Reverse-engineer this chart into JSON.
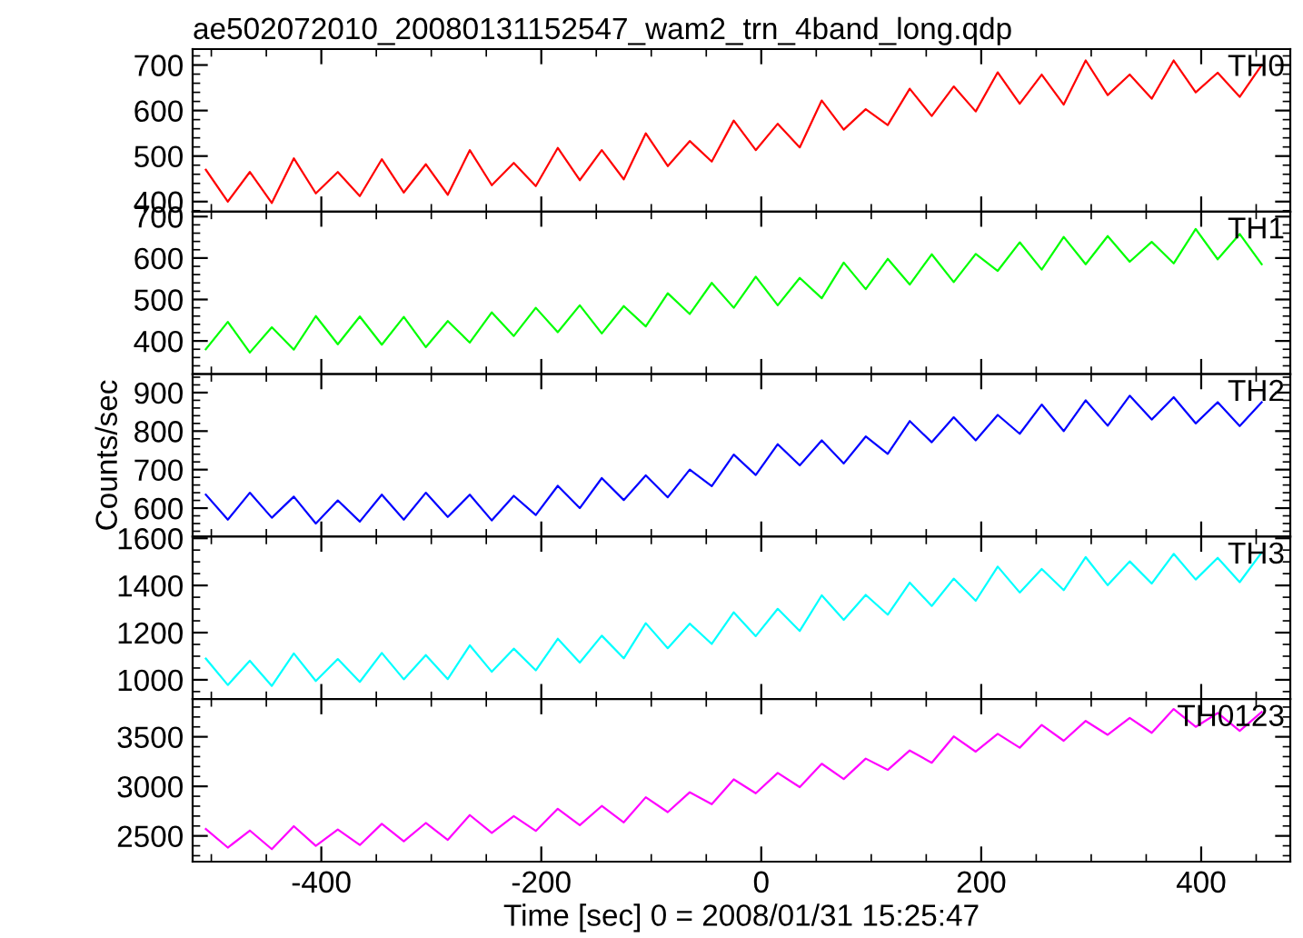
{
  "chart_data": [
    {
      "type": "line",
      "title": "ae502072010_20080131152547_wam2_trn_4band_long.qdp",
      "x": [
        -505,
        -485,
        -465,
        -445,
        -425,
        -405,
        -385,
        -365,
        -345,
        -325,
        -305,
        -285,
        -265,
        -245,
        -225,
        -205,
        -185,
        -165,
        -145,
        -125,
        -105,
        -85,
        -65,
        -45,
        -25,
        -5,
        15,
        35,
        55,
        75,
        95,
        115,
        135,
        155,
        175,
        195,
        215,
        235,
        255,
        275,
        295,
        315,
        335,
        355,
        375,
        395,
        415,
        435,
        455
      ],
      "series": [
        {
          "name": "TH0",
          "color": "#ff0000",
          "values": [
            470,
            400,
            465,
            397,
            495,
            418,
            465,
            412,
            493,
            420,
            482,
            415,
            513,
            436,
            485,
            434,
            518,
            447,
            513,
            449,
            550,
            478,
            533,
            488,
            578,
            513,
            571,
            519,
            622,
            558,
            603,
            568,
            648,
            588,
            653,
            598,
            684,
            615,
            679,
            613,
            710,
            634,
            679,
            626,
            710,
            640,
            683,
            630,
            700
          ]
        }
      ],
      "xlim": [
        -517,
        481
      ],
      "xticks": [
        -400,
        -200,
        0,
        200,
        400
      ],
      "ylim": [
        378,
        735
      ],
      "yticks": [
        400,
        500,
        600,
        700
      ],
      "tick_labels": "y",
      "grid": false,
      "legend": false,
      "marker": "none",
      "line_style": "solid"
    },
    {
      "type": "line",
      "x": [
        -505,
        -485,
        -465,
        -445,
        -425,
        -405,
        -385,
        -365,
        -345,
        -325,
        -305,
        -285,
        -265,
        -245,
        -225,
        -205,
        -185,
        -165,
        -145,
        -125,
        -105,
        -85,
        -65,
        -45,
        -25,
        -5,
        15,
        35,
        55,
        75,
        95,
        115,
        135,
        155,
        175,
        195,
        215,
        235,
        255,
        275,
        295,
        315,
        335,
        355,
        375,
        395,
        415,
        435,
        455
      ],
      "series": [
        {
          "name": "TH1",
          "color": "#00ff00",
          "values": [
            380,
            446,
            372,
            433,
            379,
            460,
            392,
            459,
            391,
            458,
            385,
            448,
            396,
            469,
            412,
            480,
            421,
            486,
            418,
            484,
            435,
            515,
            465,
            540,
            480,
            555,
            486,
            552,
            503,
            589,
            525,
            598,
            536,
            609,
            542,
            610,
            569,
            638,
            572,
            651,
            585,
            653,
            591,
            639,
            587,
            670,
            597,
            658,
            585
          ]
        }
      ],
      "xlim": [
        -517,
        481
      ],
      "xticks": [
        -400,
        -200,
        0,
        200,
        400
      ],
      "ylim": [
        320,
        712
      ],
      "yticks": [
        400,
        500,
        600,
        700
      ],
      "tick_labels": "y",
      "grid": false,
      "legend": false,
      "marker": "none",
      "line_style": "solid"
    },
    {
      "type": "line",
      "ylabel": "Counts/sec",
      "x": [
        -505,
        -485,
        -465,
        -445,
        -425,
        -405,
        -385,
        -365,
        -345,
        -325,
        -305,
        -285,
        -265,
        -245,
        -225,
        -205,
        -185,
        -165,
        -145,
        -125,
        -105,
        -85,
        -65,
        -45,
        -25,
        -5,
        15,
        35,
        55,
        75,
        95,
        115,
        135,
        155,
        175,
        195,
        215,
        235,
        255,
        275,
        295,
        315,
        335,
        355,
        375,
        395,
        415,
        435,
        455
      ],
      "series": [
        {
          "name": "TH2",
          "color": "#0000ff",
          "values": [
            635,
            570,
            640,
            575,
            630,
            560,
            620,
            565,
            635,
            570,
            640,
            577,
            635,
            568,
            632,
            582,
            658,
            600,
            678,
            621,
            685,
            628,
            700,
            657,
            739,
            686,
            766,
            711,
            776,
            716,
            786,
            741,
            826,
            771,
            836,
            776,
            842,
            793,
            869,
            800,
            880,
            814,
            892,
            830,
            888,
            820,
            875,
            813,
            875
          ]
        }
      ],
      "xlim": [
        -517,
        481
      ],
      "xticks": [
        -400,
        -200,
        0,
        200,
        400
      ],
      "ylim": [
        526,
        948
      ],
      "yticks": [
        600,
        700,
        800,
        900
      ],
      "tick_labels": "y",
      "grid": false,
      "legend": false,
      "marker": "none",
      "line_style": "solid"
    },
    {
      "type": "line",
      "x": [
        -505,
        -485,
        -465,
        -445,
        -425,
        -405,
        -385,
        -365,
        -345,
        -325,
        -305,
        -285,
        -265,
        -245,
        -225,
        -205,
        -185,
        -165,
        -145,
        -125,
        -105,
        -85,
        -65,
        -45,
        -25,
        -5,
        15,
        35,
        55,
        75,
        95,
        115,
        135,
        155,
        175,
        195,
        215,
        235,
        255,
        275,
        295,
        315,
        335,
        355,
        375,
        395,
        415,
        435,
        455
      ],
      "series": [
        {
          "name": "TH3",
          "color": "#00ffff",
          "values": [
            1090,
            978,
            1081,
            974,
            1112,
            995,
            1088,
            991,
            1114,
            1002,
            1105,
            1003,
            1146,
            1034,
            1132,
            1040,
            1174,
            1073,
            1187,
            1091,
            1240,
            1134,
            1238,
            1152,
            1286,
            1185,
            1301,
            1207,
            1358,
            1254,
            1360,
            1276,
            1412,
            1313,
            1429,
            1335,
            1480,
            1370,
            1470,
            1380,
            1520,
            1401,
            1502,
            1408,
            1534,
            1425,
            1517,
            1414,
            1540
          ]
        }
      ],
      "xlim": [
        -517,
        481
      ],
      "xticks": [
        -400,
        -200,
        0,
        200,
        400
      ],
      "ylim": [
        918,
        1607
      ],
      "yticks": [
        1000,
        1200,
        1400,
        1600
      ],
      "tick_labels": "y",
      "grid": false,
      "legend": false,
      "marker": "none",
      "line_style": "solid"
    },
    {
      "type": "line",
      "xlabel": "Time [sec] 0 = 2008/01/31 15:25:47",
      "x": [
        -505,
        -485,
        -465,
        -445,
        -425,
        -405,
        -385,
        -365,
        -345,
        -325,
        -305,
        -285,
        -265,
        -245,
        -225,
        -205,
        -185,
        -165,
        -145,
        -125,
        -105,
        -85,
        -65,
        -45,
        -25,
        -5,
        15,
        35,
        55,
        75,
        95,
        115,
        135,
        155,
        175,
        195,
        215,
        235,
        255,
        275,
        295,
        315,
        335,
        355,
        375,
        395,
        415,
        435,
        455
      ],
      "series": [
        {
          "name": "TH0123",
          "color": "#ff00ff",
          "values": [
            2570,
            2382,
            2554,
            2366,
            2598,
            2400,
            2564,
            2408,
            2622,
            2446,
            2630,
            2460,
            2710,
            2530,
            2700,
            2550,
            2774,
            2608,
            2802,
            2636,
            2890,
            2740,
            2940,
            2820,
            3070,
            2930,
            3136,
            2992,
            3228,
            3074,
            3280,
            3166,
            3362,
            3238,
            3504,
            3350,
            3530,
            3390,
            3620,
            3460,
            3660,
            3520,
            3690,
            3540,
            3780,
            3600,
            3740,
            3560,
            3750
          ]
        }
      ],
      "xlim": [
        -517,
        481
      ],
      "xticks": [
        -400,
        -200,
        0,
        200,
        400
      ],
      "ylim": [
        2240,
        3880
      ],
      "yticks": [
        2500,
        3000,
        3500
      ],
      "grid": false,
      "legend": false,
      "marker": "none",
      "line_style": "solid"
    }
  ]
}
